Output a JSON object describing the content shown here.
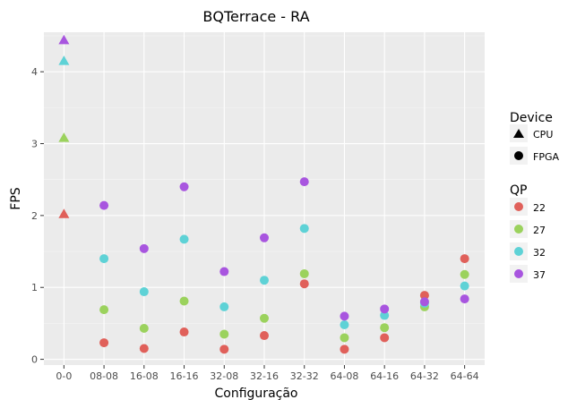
{
  "chart_data": {
    "type": "scatter",
    "title": "BQTerrace - RA",
    "xlabel": "Configuração",
    "ylabel": "FPS",
    "categories": [
      "0-0",
      "08-08",
      "16-08",
      "16-16",
      "32-08",
      "32-16",
      "32-32",
      "64-08",
      "64-16",
      "64-32",
      "64-64"
    ],
    "y_ticks": [
      0,
      1,
      2,
      3,
      4
    ],
    "ylim": [
      -0.08,
      4.55
    ],
    "grid": true,
    "legend_position": "right",
    "legends": {
      "device": {
        "title": "Device",
        "items": [
          {
            "label": "CPU",
            "shape": "triangle"
          },
          {
            "label": "FPGA",
            "shape": "circle"
          }
        ]
      },
      "qp": {
        "title": "QP",
        "items": [
          {
            "label": "22",
            "color": "#E0605A"
          },
          {
            "label": "27",
            "color": "#9BD25D"
          },
          {
            "label": "32",
            "color": "#5ED2D6"
          },
          {
            "label": "37",
            "color": "#A855DF"
          }
        ]
      }
    },
    "series": [
      {
        "name": "CPU",
        "qp": "22",
        "shape": "triangle",
        "points": [
          {
            "x": "0-0",
            "y": 2.02
          }
        ]
      },
      {
        "name": "CPU",
        "qp": "27",
        "shape": "triangle",
        "points": [
          {
            "x": "0-0",
            "y": 3.08
          }
        ]
      },
      {
        "name": "CPU",
        "qp": "32",
        "shape": "triangle",
        "points": [
          {
            "x": "0-0",
            "y": 4.15
          }
        ]
      },
      {
        "name": "CPU",
        "qp": "37",
        "shape": "triangle",
        "points": [
          {
            "x": "0-0",
            "y": 4.44
          }
        ]
      },
      {
        "name": "FPGA",
        "qp": "22",
        "shape": "circle",
        "values": [
          null,
          0.23,
          0.15,
          0.38,
          0.14,
          0.33,
          1.05,
          0.14,
          0.3,
          0.89,
          1.4
        ]
      },
      {
        "name": "FPGA",
        "qp": "27",
        "shape": "circle",
        "values": [
          null,
          0.69,
          0.43,
          0.81,
          0.35,
          0.57,
          1.19,
          0.3,
          0.44,
          0.73,
          1.18
        ]
      },
      {
        "name": "FPGA",
        "qp": "32",
        "shape": "circle",
        "values": [
          null,
          1.4,
          0.94,
          1.67,
          0.73,
          1.1,
          1.82,
          0.48,
          0.61,
          0.78,
          1.02
        ]
      },
      {
        "name": "FPGA",
        "qp": "37",
        "shape": "circle",
        "values": [
          null,
          2.14,
          1.54,
          2.4,
          1.22,
          1.69,
          2.47,
          0.6,
          0.7,
          0.8,
          0.84
        ]
      }
    ]
  }
}
